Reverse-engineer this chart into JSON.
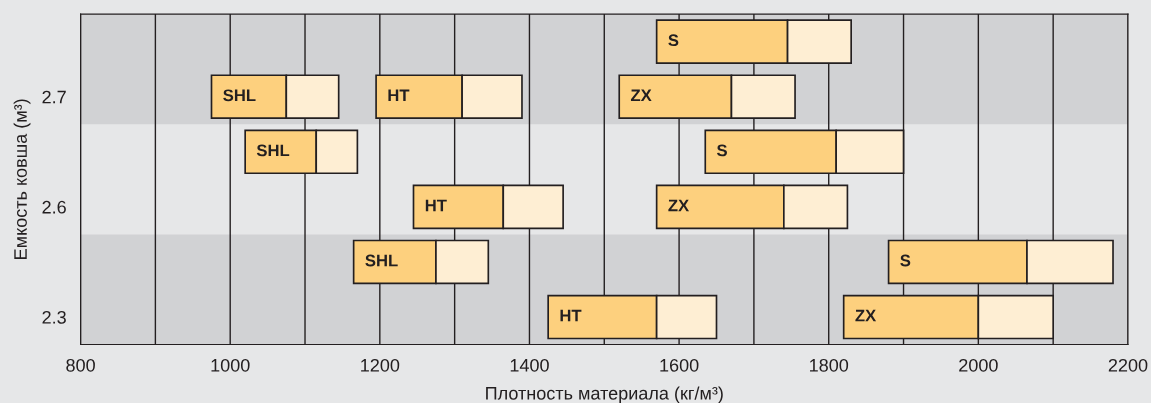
{
  "chart_data": {
    "type": "bar",
    "orientation": "horizontal",
    "xlabel": "Плотность материала (кг/м³)",
    "ylabel": "Емкость ковша (м³)",
    "categories": [
      null,
      "2.7",
      null,
      "2.6",
      null,
      "2.3"
    ],
    "series": [
      {
        "color": "#fdd07e",
        "base": [
          1570,
          975,
          1020,
          1245,
          1165,
          1425
        ],
        "values": [
          175,
          100,
          95,
          120,
          110,
          145
        ],
        "value_labels": [
          "S",
          "SHL",
          "SHL",
          "HT",
          "SHL",
          "HT"
        ]
      },
      {
        "color": "#feeed3",
        "base": [
          1745,
          1075,
          1115,
          1365,
          1275,
          1570
        ],
        "values": [
          85,
          70,
          55,
          80,
          70,
          80
        ]
      },
      {
        "color": "#fdd07e",
        "base": [
          null,
          1195,
          1635,
          1570,
          1880,
          1820
        ],
        "values": [
          null,
          115,
          175,
          170,
          185,
          180
        ],
        "value_labels": [
          null,
          "HT",
          "S",
          "ZX",
          "S",
          "ZX"
        ]
      },
      {
        "color": "#feeed3",
        "base": [
          null,
          1310,
          1810,
          1740,
          2065,
          2000
        ],
        "values": [
          null,
          80,
          90,
          85,
          115,
          100
        ]
      },
      {
        "color": "#fdd07e",
        "base": [
          null,
          1520,
          null,
          null,
          null,
          null
        ],
        "values": [
          null,
          150,
          null,
          null,
          null,
          null
        ],
        "value_labels": [
          null,
          "ZX",
          null,
          null,
          null,
          null
        ]
      },
      {
        "color": "#feeed3",
        "base": [
          null,
          1670,
          null,
          null,
          null,
          null
        ],
        "values": [
          null,
          85,
          null,
          null,
          null,
          null
        ]
      }
    ],
    "xlim": [
      800,
      2200
    ],
    "xticks": [
      800,
      {
        "value": 900,
        "label": null
      },
      1000,
      {
        "value": 1100,
        "label": null
      },
      1200,
      {
        "value": 1300,
        "label": null
      },
      1400,
      {
        "value": 1500,
        "label": null
      },
      1600,
      {
        "value": 1700,
        "label": null
      },
      1800,
      {
        "value": 1900,
        "label": null
      },
      2000,
      {
        "value": 2100,
        "label": null
      },
      2200
    ],
    "grid": "x"
  }
}
